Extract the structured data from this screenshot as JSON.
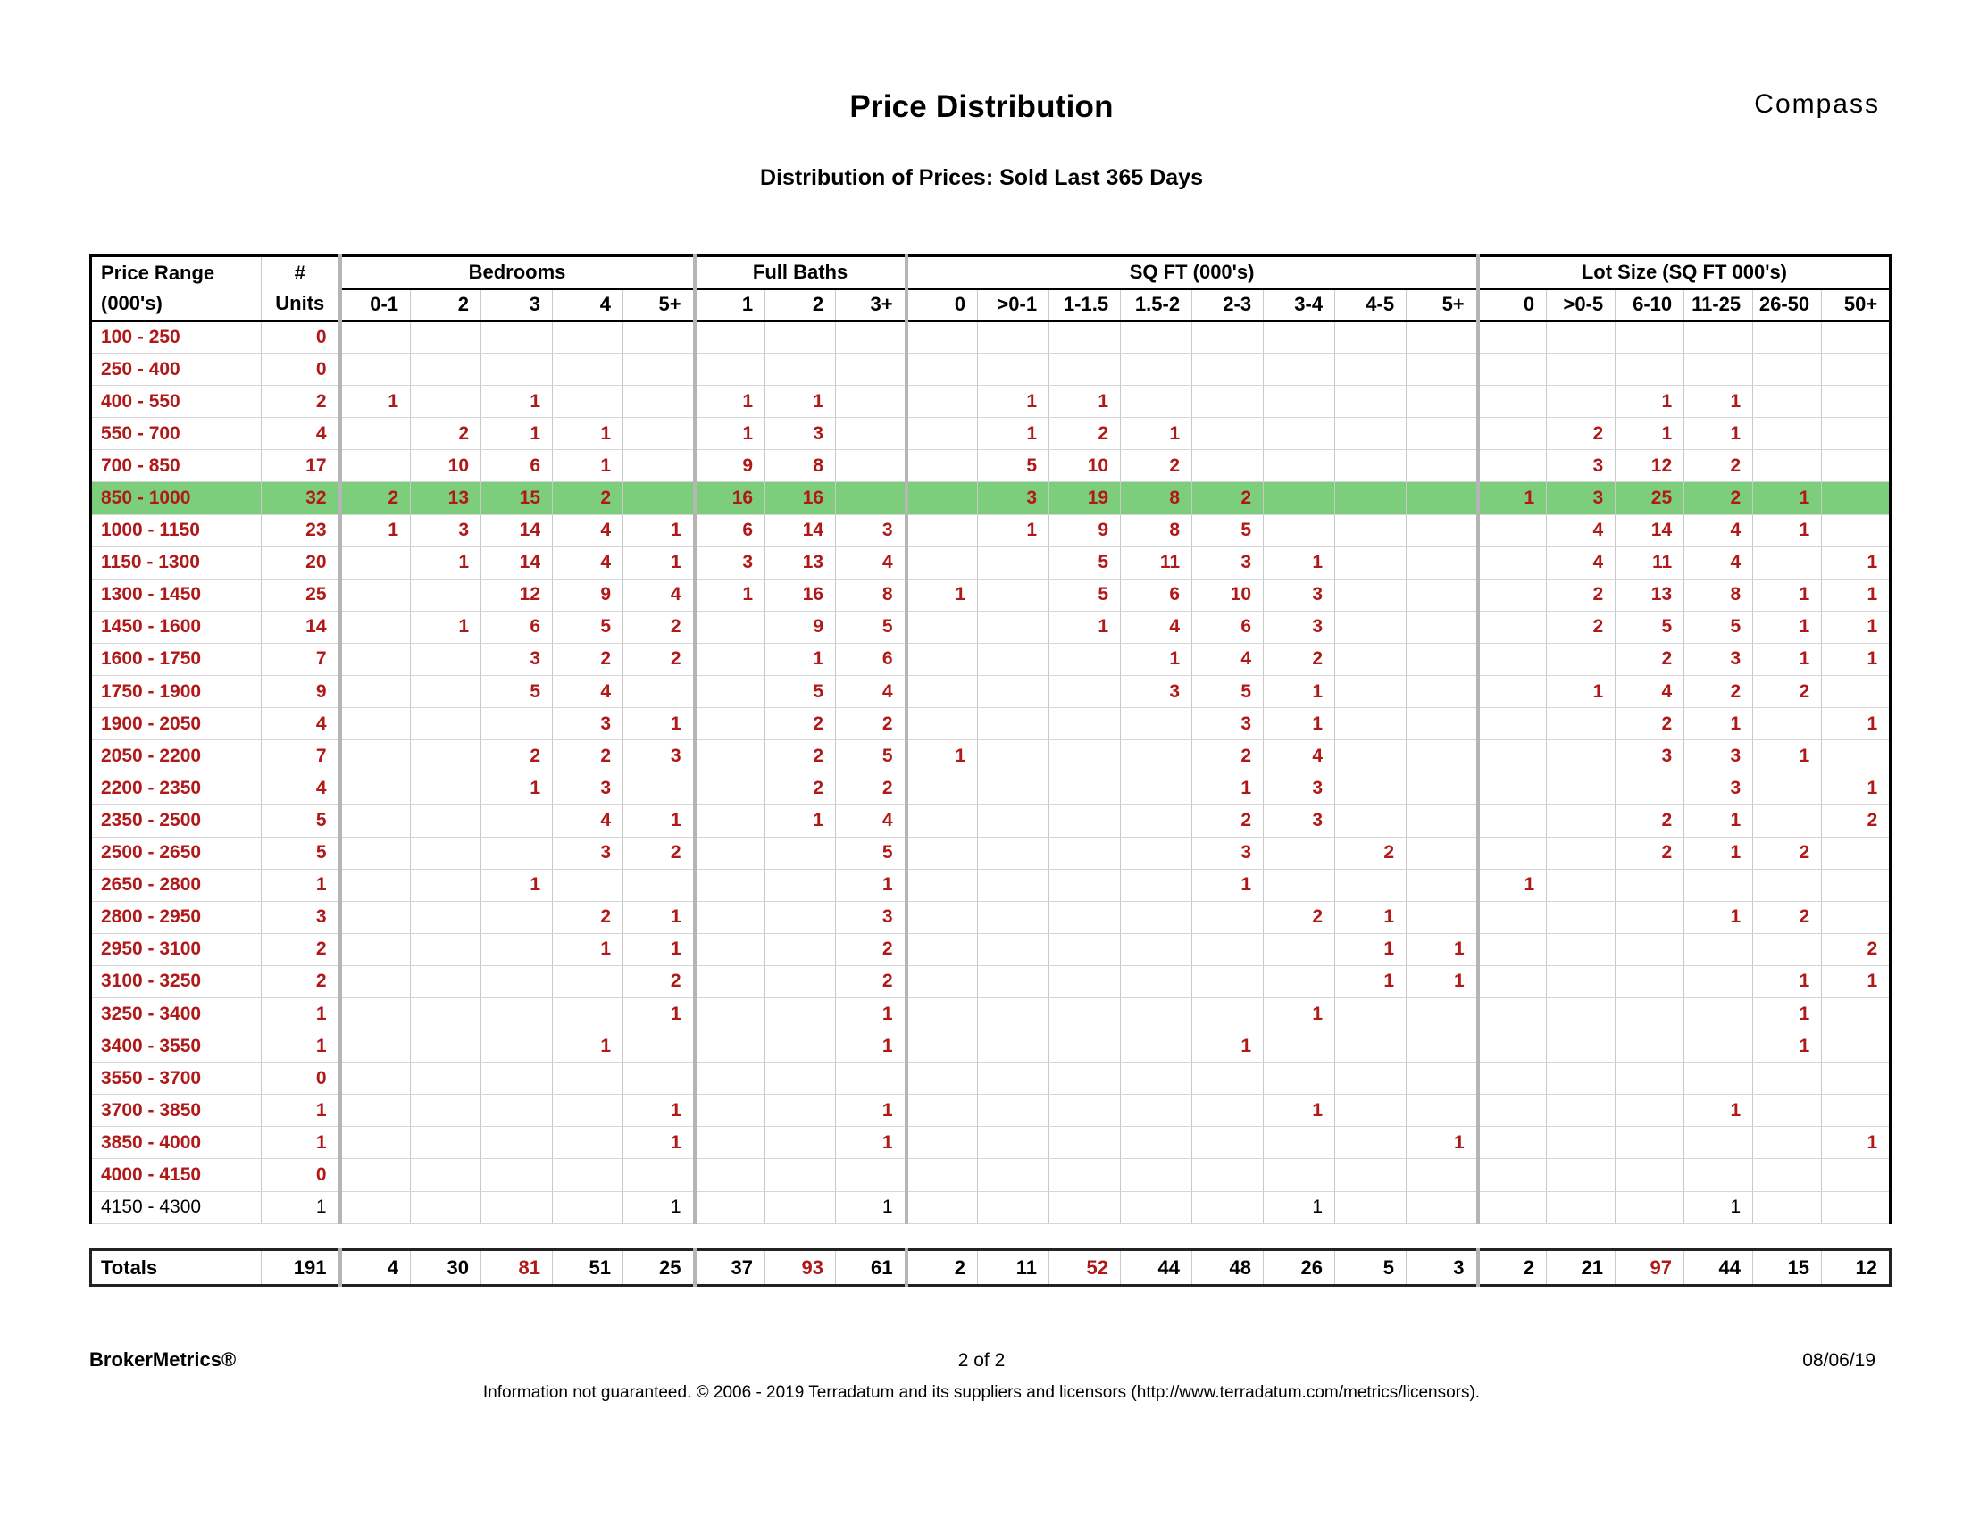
{
  "header": {
    "title": "Price Distribution",
    "subtitle": "Distribution of Prices: Sold Last 365 Days",
    "brand": "Compass"
  },
  "table": {
    "corner": {
      "line1": "Price Range",
      "line2": "(000's)"
    },
    "units_header": {
      "line1": "#",
      "line2": "Units"
    },
    "groups": [
      {
        "label": "Bedrooms",
        "cols": [
          "0-1",
          "2",
          "3",
          "4",
          "5+"
        ]
      },
      {
        "label": "Full Baths",
        "cols": [
          "1",
          "2",
          "3+"
        ]
      },
      {
        "label": "SQ FT (000's)",
        "cols": [
          "0",
          ">0-1",
          "1-1.5",
          "1.5-2",
          "2-3",
          "3-4",
          "4-5",
          "5+"
        ]
      },
      {
        "label": "Lot Size (SQ FT 000's)",
        "cols": [
          "0",
          ">0-5",
          "6-10",
          "11-25",
          "26-50",
          "50+"
        ]
      }
    ],
    "rows": [
      {
        "range": "100 - 250",
        "units": "0",
        "cells": [
          "",
          "",
          "",
          "",
          "",
          "",
          "",
          "",
          "",
          "",
          "",
          "",
          "",
          "",
          "",
          "",
          "",
          "",
          "",
          "",
          "",
          ""
        ]
      },
      {
        "range": "250 - 400",
        "units": "0",
        "cells": [
          "",
          "",
          "",
          "",
          "",
          "",
          "",
          "",
          "",
          "",
          "",
          "",
          "",
          "",
          "",
          "",
          "",
          "",
          "",
          "",
          "",
          ""
        ]
      },
      {
        "range": "400 - 550",
        "units": "2",
        "cells": [
          "1",
          "",
          "1",
          "",
          "",
          "1",
          "1",
          "",
          "",
          "1",
          "1",
          "",
          "",
          "",
          "",
          "",
          "",
          "",
          "1",
          "1",
          "",
          ""
        ]
      },
      {
        "range": "550 - 700",
        "units": "4",
        "cells": [
          "",
          "2",
          "1",
          "1",
          "",
          "1",
          "3",
          "",
          "",
          "1",
          "2",
          "1",
          "",
          "",
          "",
          "",
          "",
          "2",
          "1",
          "1",
          "",
          ""
        ]
      },
      {
        "range": "700 - 850",
        "units": "17",
        "cells": [
          "",
          "10",
          "6",
          "1",
          "",
          "9",
          "8",
          "",
          "",
          "5",
          "10",
          "2",
          "",
          "",
          "",
          "",
          "",
          "3",
          "12",
          "2",
          "",
          ""
        ]
      },
      {
        "range": "850 - 1000",
        "units": "32",
        "highlight": true,
        "cells": [
          "2",
          "13",
          "15",
          "2",
          "",
          "16",
          "16",
          "",
          "",
          "3",
          "19",
          "8",
          "2",
          "",
          "",
          "",
          "1",
          "3",
          "25",
          "2",
          "1",
          ""
        ]
      },
      {
        "range": "1000 - 1150",
        "units": "23",
        "cells": [
          "1",
          "3",
          "14",
          "4",
          "1",
          "6",
          "14",
          "3",
          "",
          "1",
          "9",
          "8",
          "5",
          "",
          "",
          "",
          "",
          "4",
          "14",
          "4",
          "1",
          ""
        ]
      },
      {
        "range": "1150 - 1300",
        "units": "20",
        "cells": [
          "",
          "1",
          "14",
          "4",
          "1",
          "3",
          "13",
          "4",
          "",
          "",
          "5",
          "11",
          "3",
          "1",
          "",
          "",
          "",
          "4",
          "11",
          "4",
          "",
          "1"
        ]
      },
      {
        "range": "1300 - 1450",
        "units": "25",
        "cells": [
          "",
          "",
          "12",
          "9",
          "4",
          "1",
          "16",
          "8",
          "1",
          "",
          "5",
          "6",
          "10",
          "3",
          "",
          "",
          "",
          "2",
          "13",
          "8",
          "1",
          "1"
        ]
      },
      {
        "range": "1450 - 1600",
        "units": "14",
        "cells": [
          "",
          "1",
          "6",
          "5",
          "2",
          "",
          "9",
          "5",
          "",
          "",
          "1",
          "4",
          "6",
          "3",
          "",
          "",
          "",
          "2",
          "5",
          "5",
          "1",
          "1"
        ]
      },
      {
        "range": "1600 - 1750",
        "units": "7",
        "cells": [
          "",
          "",
          "3",
          "2",
          "2",
          "",
          "1",
          "6",
          "",
          "",
          "",
          "1",
          "4",
          "2",
          "",
          "",
          "",
          "",
          "2",
          "3",
          "1",
          "1"
        ]
      },
      {
        "range": "1750 - 1900",
        "units": "9",
        "cells": [
          "",
          "",
          "5",
          "4",
          "",
          "",
          "5",
          "4",
          "",
          "",
          "",
          "3",
          "5",
          "1",
          "",
          "",
          "",
          "1",
          "4",
          "2",
          "2",
          ""
        ]
      },
      {
        "range": "1900 - 2050",
        "units": "4",
        "cells": [
          "",
          "",
          "",
          "3",
          "1",
          "",
          "2",
          "2",
          "",
          "",
          "",
          "",
          "3",
          "1",
          "",
          "",
          "",
          "",
          "2",
          "1",
          "",
          "1"
        ]
      },
      {
        "range": "2050 - 2200",
        "units": "7",
        "cells": [
          "",
          "",
          "2",
          "2",
          "3",
          "",
          "2",
          "5",
          "1",
          "",
          "",
          "",
          "2",
          "4",
          "",
          "",
          "",
          "",
          "3",
          "3",
          "1",
          ""
        ]
      },
      {
        "range": "2200 - 2350",
        "units": "4",
        "cells": [
          "",
          "",
          "1",
          "3",
          "",
          "",
          "2",
          "2",
          "",
          "",
          "",
          "",
          "1",
          "3",
          "",
          "",
          "",
          "",
          "",
          "3",
          "",
          "1"
        ]
      },
      {
        "range": "2350 - 2500",
        "units": "5",
        "cells": [
          "",
          "",
          "",
          "4",
          "1",
          "",
          "1",
          "4",
          "",
          "",
          "",
          "",
          "2",
          "3",
          "",
          "",
          "",
          "",
          "2",
          "1",
          "",
          "2"
        ]
      },
      {
        "range": "2500 - 2650",
        "units": "5",
        "cells": [
          "",
          "",
          "",
          "3",
          "2",
          "",
          "",
          "5",
          "",
          "",
          "",
          "",
          "3",
          "",
          "2",
          "",
          "",
          "",
          "2",
          "1",
          "2",
          ""
        ]
      },
      {
        "range": "2650 - 2800",
        "units": "1",
        "cells": [
          "",
          "",
          "1",
          "",
          "",
          "",
          "",
          "1",
          "",
          "",
          "",
          "",
          "1",
          "",
          "",
          "",
          "1",
          "",
          "",
          "",
          "",
          ""
        ]
      },
      {
        "range": "2800 - 2950",
        "units": "3",
        "cells": [
          "",
          "",
          "",
          "2",
          "1",
          "",
          "",
          "3",
          "",
          "",
          "",
          "",
          "",
          "2",
          "1",
          "",
          "",
          "",
          "",
          "1",
          "2",
          ""
        ]
      },
      {
        "range": "2950 - 3100",
        "units": "2",
        "cells": [
          "",
          "",
          "",
          "1",
          "1",
          "",
          "",
          "2",
          "",
          "",
          "",
          "",
          "",
          "",
          "1",
          "1",
          "",
          "",
          "",
          "",
          "",
          "2"
        ]
      },
      {
        "range": "3100 - 3250",
        "units": "2",
        "cells": [
          "",
          "",
          "",
          "",
          "2",
          "",
          "",
          "2",
          "",
          "",
          "",
          "",
          "",
          "",
          "1",
          "1",
          "",
          "",
          "",
          "",
          "1",
          "1"
        ]
      },
      {
        "range": "3250 - 3400",
        "units": "1",
        "cells": [
          "",
          "",
          "",
          "",
          "1",
          "",
          "",
          "1",
          "",
          "",
          "",
          "",
          "",
          "1",
          "",
          "",
          "",
          "",
          "",
          "",
          "1",
          ""
        ]
      },
      {
        "range": "3400 - 3550",
        "units": "1",
        "cells": [
          "",
          "",
          "",
          "1",
          "",
          "",
          "",
          "1",
          "",
          "",
          "",
          "",
          "1",
          "",
          "",
          "",
          "",
          "",
          "",
          "",
          "1",
          ""
        ]
      },
      {
        "range": "3550 - 3700",
        "units": "0",
        "cells": [
          "",
          "",
          "",
          "",
          "",
          "",
          "",
          "",
          "",
          "",
          "",
          "",
          "",
          "",
          "",
          "",
          "",
          "",
          "",
          "",
          "",
          ""
        ]
      },
      {
        "range": "3700 - 3850",
        "units": "1",
        "cells": [
          "",
          "",
          "",
          "",
          "1",
          "",
          "",
          "1",
          "",
          "",
          "",
          "",
          "",
          "1",
          "",
          "",
          "",
          "",
          "",
          "1",
          "",
          ""
        ]
      },
      {
        "range": "3850 - 4000",
        "units": "1",
        "cells": [
          "",
          "",
          "",
          "",
          "1",
          "",
          "",
          "1",
          "",
          "",
          "",
          "",
          "",
          "",
          "",
          "1",
          "",
          "",
          "",
          "",
          "",
          "1"
        ]
      },
      {
        "range": "4000 - 4150",
        "units": "0",
        "cells": [
          "",
          "",
          "",
          "",
          "",
          "",
          "",
          "",
          "",
          "",
          "",
          "",
          "",
          "",
          "",
          "",
          "",
          "",
          "",
          "",
          "",
          ""
        ]
      },
      {
        "range": "4150 - 4300",
        "units": "1",
        "muted": true,
        "cells": [
          "",
          "",
          "",
          "",
          "1",
          "",
          "",
          "1",
          "",
          "",
          "",
          "",
          "",
          "1",
          "",
          "",
          "",
          "",
          "",
          "1",
          "",
          ""
        ]
      }
    ],
    "totals": {
      "label": "Totals",
      "units": "191",
      "cells": [
        "4",
        "30",
        "81",
        "51",
        "25",
        "37",
        "93",
        "61",
        "2",
        "11",
        "52",
        "44",
        "48",
        "26",
        "5",
        "3",
        "2",
        "21",
        "97",
        "44",
        "15",
        "12"
      ],
      "red_indices": [
        2,
        6,
        10,
        18
      ]
    }
  },
  "footer": {
    "left": "BrokerMetrics®",
    "center": "2 of 2",
    "right": "08/06/19",
    "disclaimer": "Information not guaranteed.  © 2006 - 2019 Terradatum and its suppliers and licensors (http://www.terradatum.com/metrics/licensors)."
  },
  "colors": {
    "highlight_green": "#7ccd7c",
    "value_red": "#b11818",
    "grid_gray": "#c9c9c9",
    "group_separator_gray": "#b5b5b5"
  }
}
